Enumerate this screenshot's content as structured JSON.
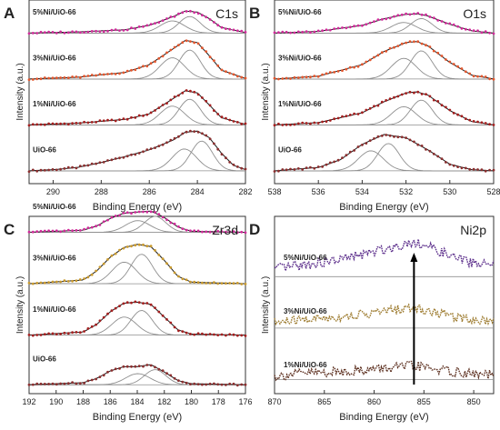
{
  "chart_data": [
    {
      "type": "line",
      "panel_letter": "A",
      "title": "C1s",
      "xlabel": "Binding Energy (eV)",
      "ylabel": "Intensity (a.u.)",
      "xlim": [
        291,
        282
      ],
      "xticks": [
        "290",
        "288",
        "286",
        "284",
        "282"
      ],
      "series": [
        {
          "name": "UiO-66",
          "values": [
            {
              "x": 291,
              "y": 0.0
            },
            {
              "x": 290,
              "y": 0.02
            },
            {
              "x": 289,
              "y": 0.06
            },
            {
              "x": 288,
              "y": 0.15
            },
            {
              "x": 287,
              "y": 0.26
            },
            {
              "x": 286,
              "y": 0.38
            },
            {
              "x": 285,
              "y": 0.56
            },
            {
              "x": 284.5,
              "y": 0.7
            },
            {
              "x": 284,
              "y": 0.72
            },
            {
              "x": 283.5,
              "y": 0.6
            },
            {
              "x": 283,
              "y": 0.32
            },
            {
              "x": 282.5,
              "y": 0.1
            },
            {
              "x": 282,
              "y": 0.02
            }
          ]
        },
        {
          "name": "1%Ni/UiO-66",
          "values": [
            {
              "x": 291,
              "y": 0.0
            },
            {
              "x": 289,
              "y": 0.03
            },
            {
              "x": 287,
              "y": 0.1
            },
            {
              "x": 286,
              "y": 0.2
            },
            {
              "x": 285,
              "y": 0.48
            },
            {
              "x": 284.5,
              "y": 0.62
            },
            {
              "x": 284,
              "y": 0.58
            },
            {
              "x": 283.5,
              "y": 0.36
            },
            {
              "x": 283,
              "y": 0.13
            },
            {
              "x": 282,
              "y": 0.01
            }
          ]
        },
        {
          "name": "3%Ni/UiO-66",
          "values": [
            {
              "x": 291,
              "y": 0.0
            },
            {
              "x": 289,
              "y": 0.03
            },
            {
              "x": 287,
              "y": 0.12
            },
            {
              "x": 286,
              "y": 0.26
            },
            {
              "x": 285,
              "y": 0.55
            },
            {
              "x": 284.5,
              "y": 0.7
            },
            {
              "x": 284,
              "y": 0.66
            },
            {
              "x": 283.5,
              "y": 0.42
            },
            {
              "x": 283,
              "y": 0.16
            },
            {
              "x": 282,
              "y": 0.01
            }
          ]
        },
        {
          "name": "5%Ni/UiO-66",
          "values": [
            {
              "x": 291,
              "y": 0.0
            },
            {
              "x": 289,
              "y": 0.02
            },
            {
              "x": 287,
              "y": 0.06
            },
            {
              "x": 286,
              "y": 0.14
            },
            {
              "x": 285,
              "y": 0.3
            },
            {
              "x": 284.5,
              "y": 0.4
            },
            {
              "x": 284,
              "y": 0.38
            },
            {
              "x": 283.5,
              "y": 0.26
            },
            {
              "x": 283,
              "y": 0.1
            },
            {
              "x": 282,
              "y": 0.01
            }
          ]
        }
      ]
    },
    {
      "type": "line",
      "panel_letter": "B",
      "title": "O1s",
      "xlabel": "Binding Energy (eV)",
      "ylabel": "Intensity (a.u.)",
      "xlim": [
        538,
        528
      ],
      "xticks": [
        "538",
        "536",
        "534",
        "532",
        "530",
        "528"
      ],
      "series": [
        {
          "name": "UiO-66",
          "values": [
            {
              "x": 538,
              "y": 0.0
            },
            {
              "x": 536,
              "y": 0.06
            },
            {
              "x": 535,
              "y": 0.2
            },
            {
              "x": 534,
              "y": 0.48
            },
            {
              "x": 533,
              "y": 0.66
            },
            {
              "x": 532,
              "y": 0.6
            },
            {
              "x": 531,
              "y": 0.38
            },
            {
              "x": 530,
              "y": 0.12
            },
            {
              "x": 529,
              "y": 0.02
            },
            {
              "x": 528,
              "y": 0.0
            }
          ]
        },
        {
          "name": "1%Ni/UiO-66",
          "values": [
            {
              "x": 538,
              "y": 0.0
            },
            {
              "x": 536,
              "y": 0.04
            },
            {
              "x": 534,
              "y": 0.22
            },
            {
              "x": 533,
              "y": 0.42
            },
            {
              "x": 532,
              "y": 0.58
            },
            {
              "x": 531.5,
              "y": 0.6
            },
            {
              "x": 531,
              "y": 0.54
            },
            {
              "x": 530,
              "y": 0.26
            },
            {
              "x": 529,
              "y": 0.06
            },
            {
              "x": 528,
              "y": 0.0
            }
          ]
        },
        {
          "name": "3%Ni/UiO-66",
          "values": [
            {
              "x": 538,
              "y": 0.0
            },
            {
              "x": 536,
              "y": 0.05
            },
            {
              "x": 534,
              "y": 0.26
            },
            {
              "x": 533,
              "y": 0.5
            },
            {
              "x": 532,
              "y": 0.66
            },
            {
              "x": 531.5,
              "y": 0.68
            },
            {
              "x": 531,
              "y": 0.6
            },
            {
              "x": 530,
              "y": 0.3
            },
            {
              "x": 529,
              "y": 0.07
            },
            {
              "x": 528,
              "y": 0.0
            }
          ]
        },
        {
          "name": "5%Ni/UiO-66",
          "values": [
            {
              "x": 538,
              "y": 0.0
            },
            {
              "x": 536,
              "y": 0.03
            },
            {
              "x": 534,
              "y": 0.14
            },
            {
              "x": 533,
              "y": 0.26
            },
            {
              "x": 532,
              "y": 0.34
            },
            {
              "x": 531.5,
              "y": 0.35
            },
            {
              "x": 531,
              "y": 0.31
            },
            {
              "x": 530,
              "y": 0.16
            },
            {
              "x": 529,
              "y": 0.04
            },
            {
              "x": 528,
              "y": 0.0
            }
          ]
        }
      ]
    },
    {
      "type": "line",
      "panel_letter": "C",
      "title": "Zr3d",
      "xlabel": "Binding Energy (eV)",
      "ylabel": "Intensity (a.u.)",
      "xlim": [
        192,
        176
      ],
      "xticks": [
        "192",
        "190",
        "188",
        "186",
        "184",
        "182",
        "180",
        "178",
        "176"
      ],
      "series": [
        {
          "name": "UiO-66",
          "values": [
            {
              "x": 192,
              "y": 0.0
            },
            {
              "x": 188,
              "y": 0.04
            },
            {
              "x": 187,
              "y": 0.12
            },
            {
              "x": 186,
              "y": 0.26
            },
            {
              "x": 185,
              "y": 0.34
            },
            {
              "x": 184,
              "y": 0.34
            },
            {
              "x": 183,
              "y": 0.38
            },
            {
              "x": 182,
              "y": 0.24
            },
            {
              "x": 181,
              "y": 0.08
            },
            {
              "x": 180,
              "y": 0.02
            },
            {
              "x": 176,
              "y": 0.0
            }
          ]
        },
        {
          "name": "1%Ni/UiO-66",
          "values": [
            {
              "x": 192,
              "y": 0.0
            },
            {
              "x": 188,
              "y": 0.06
            },
            {
              "x": 187,
              "y": 0.2
            },
            {
              "x": 186,
              "y": 0.44
            },
            {
              "x": 185,
              "y": 0.6
            },
            {
              "x": 184,
              "y": 0.62
            },
            {
              "x": 183,
              "y": 0.58
            },
            {
              "x": 182,
              "y": 0.34
            },
            {
              "x": 181,
              "y": 0.1
            },
            {
              "x": 180,
              "y": 0.02
            },
            {
              "x": 176,
              "y": 0.0
            }
          ]
        },
        {
          "name": "3%Ni/UiO-66",
          "values": [
            {
              "x": 192,
              "y": 0.0
            },
            {
              "x": 188,
              "y": 0.07
            },
            {
              "x": 187,
              "y": 0.24
            },
            {
              "x": 186,
              "y": 0.5
            },
            {
              "x": 185,
              "y": 0.68
            },
            {
              "x": 184,
              "y": 0.74
            },
            {
              "x": 183,
              "y": 0.7
            },
            {
              "x": 182,
              "y": 0.44
            },
            {
              "x": 181,
              "y": 0.14
            },
            {
              "x": 180,
              "y": 0.03
            },
            {
              "x": 176,
              "y": 0.0
            }
          ]
        },
        {
          "name": "5%Ni/UiO-66",
          "values": [
            {
              "x": 192,
              "y": 0.0
            },
            {
              "x": 188,
              "y": 0.04
            },
            {
              "x": 187,
              "y": 0.12
            },
            {
              "x": 186,
              "y": 0.26
            },
            {
              "x": 185,
              "y": 0.36
            },
            {
              "x": 184,
              "y": 0.38
            },
            {
              "x": 183,
              "y": 0.4
            },
            {
              "x": 182,
              "y": 0.28
            },
            {
              "x": 181,
              "y": 0.1
            },
            {
              "x": 180,
              "y": 0.02
            },
            {
              "x": 176,
              "y": 0.0
            }
          ]
        }
      ]
    },
    {
      "type": "line",
      "panel_letter": "D",
      "title": "Ni2p",
      "xlabel": "Binding Energy (eV)",
      "ylabel": "Intensity (a.u.)",
      "xlim": [
        870,
        848
      ],
      "xticks": [
        "870",
        "865",
        "860",
        "855",
        "850"
      ],
      "series": [
        {
          "name": "1%Ni/UiO-66",
          "values": [
            {
              "x": 870,
              "y": 0.06
            },
            {
              "x": 867,
              "y": 0.12
            },
            {
              "x": 864,
              "y": 0.14
            },
            {
              "x": 861,
              "y": 0.18
            },
            {
              "x": 858,
              "y": 0.22
            },
            {
              "x": 856,
              "y": 0.26
            },
            {
              "x": 854,
              "y": 0.2
            },
            {
              "x": 852,
              "y": 0.14
            },
            {
              "x": 850,
              "y": 0.1
            },
            {
              "x": 848,
              "y": 0.08
            }
          ]
        },
        {
          "name": "3%Ni/UiO-66",
          "values": [
            {
              "x": 870,
              "y": 0.1
            },
            {
              "x": 867,
              "y": 0.16
            },
            {
              "x": 864,
              "y": 0.2
            },
            {
              "x": 861,
              "y": 0.26
            },
            {
              "x": 858,
              "y": 0.34
            },
            {
              "x": 856,
              "y": 0.38
            },
            {
              "x": 854,
              "y": 0.3
            },
            {
              "x": 852,
              "y": 0.22
            },
            {
              "x": 850,
              "y": 0.16
            },
            {
              "x": 848,
              "y": 0.14
            }
          ]
        },
        {
          "name": "5%Ni/UiO-66",
          "values": [
            {
              "x": 870,
              "y": 0.14
            },
            {
              "x": 867,
              "y": 0.22
            },
            {
              "x": 864,
              "y": 0.3
            },
            {
              "x": 861,
              "y": 0.42
            },
            {
              "x": 858,
              "y": 0.56
            },
            {
              "x": 856,
              "y": 0.66
            },
            {
              "x": 854,
              "y": 0.52
            },
            {
              "x": 852,
              "y": 0.36
            },
            {
              "x": 850,
              "y": 0.26
            },
            {
              "x": 848,
              "y": 0.22
            }
          ]
        }
      ]
    }
  ],
  "colors": {
    "UiO-66": "#8c2f2f",
    "1%Ni/UiO-66": "#a51f1f",
    "3%Ni/UiO-66": "#e4572e",
    "5%Ni/UiO-66": "#d12b9b",
    "zr_3%": "#c99a2e",
    "ni_1%": "#5c2f1f",
    "ni_3%": "#9d7b2f",
    "ni_5%": "#5a2c8a",
    "component": "#8f8f8f",
    "fit": "#1a1a1a"
  },
  "arrow_from_x": 856
}
